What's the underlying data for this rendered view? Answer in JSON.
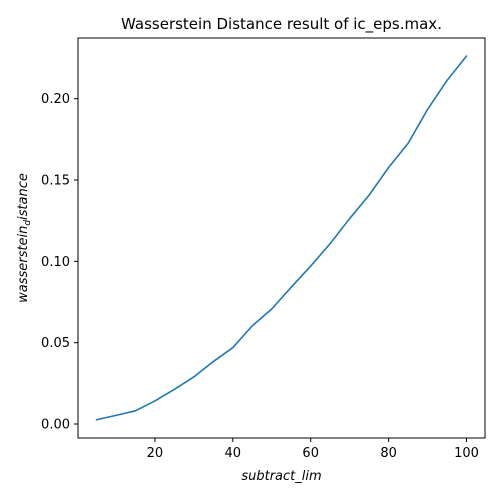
{
  "chart_data": {
    "type": "line",
    "title": "Wasserstein Distance result of ic_eps.max.",
    "xlabel": "subtract_lim",
    "ylabel_main": "wasserstein",
    "ylabel_sub": "d",
    "ylabel_tail": "istance",
    "xlim": [
      0.25,
      104.75
    ],
    "ylim": [
      -0.0086,
      0.2373
    ],
    "xticks": [
      20,
      40,
      60,
      80,
      100
    ],
    "yticks": [
      0.0,
      0.05,
      0.1,
      0.15,
      0.2
    ],
    "ytick_labels": [
      "0.00",
      "0.05",
      "0.10",
      "0.15",
      "0.20"
    ],
    "grid": false,
    "series": [
      {
        "color": "#1f77b4",
        "x": [
          5,
          10,
          15,
          20,
          25,
          30,
          35,
          40,
          45,
          50,
          55,
          60,
          65,
          70,
          75,
          80,
          85,
          90,
          95,
          100
        ],
        "y": [
          0.0026,
          0.0053,
          0.0081,
          0.0142,
          0.0213,
          0.029,
          0.0384,
          0.047,
          0.0604,
          0.0707,
          0.0841,
          0.0971,
          0.1109,
          0.1263,
          0.1407,
          0.1577,
          0.1725,
          0.1934,
          0.2112,
          0.2262
        ]
      }
    ]
  }
}
